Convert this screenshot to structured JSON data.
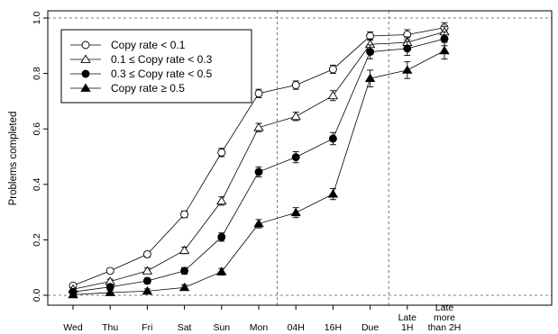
{
  "chart_data": {
    "type": "line",
    "ylabel": "Problems completed",
    "ylim": [
      0,
      1
    ],
    "yticks": [
      "0.0",
      "0.2",
      "0.4",
      "0.6",
      "0.8",
      "1.0"
    ],
    "categories": [
      "Wed",
      "Thu",
      "Fri",
      "Sat",
      "Sun",
      "Mon",
      "04H",
      "16H",
      "Due",
      "Late 1H",
      "Late more than 2H"
    ],
    "category_lines": [
      [
        "Wed"
      ],
      [
        "Thu"
      ],
      [
        "Fri"
      ],
      [
        "Sat"
      ],
      [
        "Sun"
      ],
      [
        "Mon"
      ],
      [
        "04H"
      ],
      [
        "16H"
      ],
      [
        "Due"
      ],
      [
        "Late",
        "1H"
      ],
      [
        "Late",
        "more",
        "than 2H"
      ]
    ],
    "reference_lines": {
      "horizontal": [
        0,
        1
      ],
      "vertical_after_category_index": [
        5,
        8
      ]
    },
    "legend_position": "top-left",
    "series": [
      {
        "name": "Copy rate < 0.1",
        "marker": "open-circle",
        "values": [
          0.035,
          0.088,
          0.148,
          0.292,
          0.515,
          0.728,
          0.758,
          0.815,
          0.935,
          0.94,
          0.965
        ],
        "errors": [
          0.006,
          0.008,
          0.01,
          0.012,
          0.015,
          0.015,
          0.015,
          0.015,
          0.015,
          0.018,
          0.018
        ]
      },
      {
        "name": "0.1 ≤ Copy rate < 0.3",
        "marker": "open-triangle",
        "values": [
          0.022,
          0.05,
          0.088,
          0.162,
          0.34,
          0.605,
          0.645,
          0.72,
          0.905,
          0.912,
          0.95
        ],
        "errors": [
          0.006,
          0.008,
          0.01,
          0.012,
          0.015,
          0.015,
          0.015,
          0.018,
          0.02,
          0.02,
          0.02
        ]
      },
      {
        "name": "0.3 ≤ Copy rate < 0.5",
        "marker": "filled-circle",
        "values": [
          0.012,
          0.03,
          0.052,
          0.088,
          0.21,
          0.445,
          0.498,
          0.565,
          0.878,
          0.89,
          0.925
        ],
        "errors": [
          0.006,
          0.008,
          0.01,
          0.012,
          0.015,
          0.018,
          0.02,
          0.022,
          0.025,
          0.025,
          0.025
        ]
      },
      {
        "name": "Copy rate ≥ 0.5",
        "marker": "filled-triangle",
        "values": [
          0.002,
          0.01,
          0.015,
          0.028,
          0.085,
          0.258,
          0.298,
          0.365,
          0.782,
          0.812,
          0.882
        ],
        "errors": [
          0.006,
          0.008,
          0.008,
          0.01,
          0.012,
          0.015,
          0.018,
          0.02,
          0.03,
          0.03,
          0.03
        ]
      }
    ]
  }
}
